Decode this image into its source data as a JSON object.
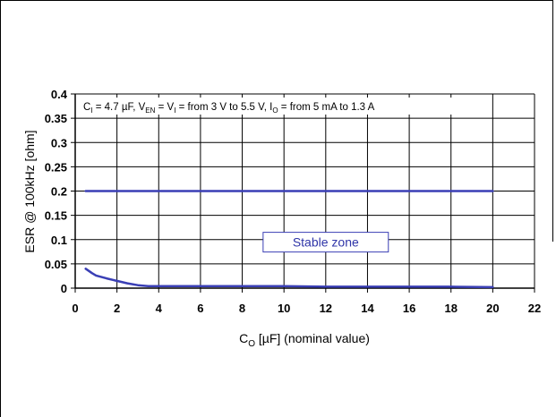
{
  "chart_data": {
    "type": "line",
    "title": "",
    "xlabel": "C",
    "xlabel_sub": "O",
    "xlabel_rest": " [µF] (nominal value)",
    "ylabel": "ESR @ 100kHz [ohm]",
    "xlim": [
      0,
      22
    ],
    "ylim": [
      0,
      0.4
    ],
    "x_ticks": [
      0,
      2,
      4,
      6,
      8,
      10,
      12,
      14,
      16,
      18,
      20,
      22
    ],
    "y_ticks": [
      0,
      0.05,
      0.1,
      0.15,
      0.2,
      0.25,
      0.3,
      0.35,
      0.4
    ],
    "x_tick_labels": [
      "0",
      "2",
      "4",
      "6",
      "8",
      "10",
      "12",
      "14",
      "16",
      "18",
      "20",
      "22"
    ],
    "y_tick_labels": [
      "0",
      "0.05",
      "0.1",
      "0.15",
      "0.2",
      "0.25",
      "0.3",
      "0.35",
      "0.4"
    ],
    "grid": true,
    "legend": "none",
    "line_color": "#3a3fb5",
    "series": [
      {
        "x": [
          0.5,
          20
        ],
        "values": [
          0.2,
          0.2
        ]
      },
      {
        "x": [
          0.5,
          0.8,
          1.0,
          1.5,
          2.0,
          2.5,
          3.0,
          3.5,
          4,
          6,
          8,
          10,
          12,
          14,
          16,
          18,
          20
        ],
        "values": [
          0.04,
          0.031,
          0.026,
          0.02,
          0.015,
          0.01,
          0.006,
          0.004,
          0.004,
          0.004,
          0.004,
          0.004,
          0.003,
          0.003,
          0.003,
          0.003,
          0.002
        ]
      }
    ],
    "annotations": {
      "conditions": {
        "parts": [
          {
            "t": "C"
          },
          {
            "t": "I",
            "sub": true
          },
          {
            "t": " = 4.7 µF, V"
          },
          {
            "t": "EN",
            "sub": true
          },
          {
            "t": " = V"
          },
          {
            "t": "I",
            "sub": true
          },
          {
            "t": " = from 3 V to 5.5 V, I"
          },
          {
            "t": "O",
            "sub": true
          },
          {
            "t": " = from 5 mA to 1.3 A"
          }
        ]
      },
      "region_label": "Stable zone"
    }
  }
}
